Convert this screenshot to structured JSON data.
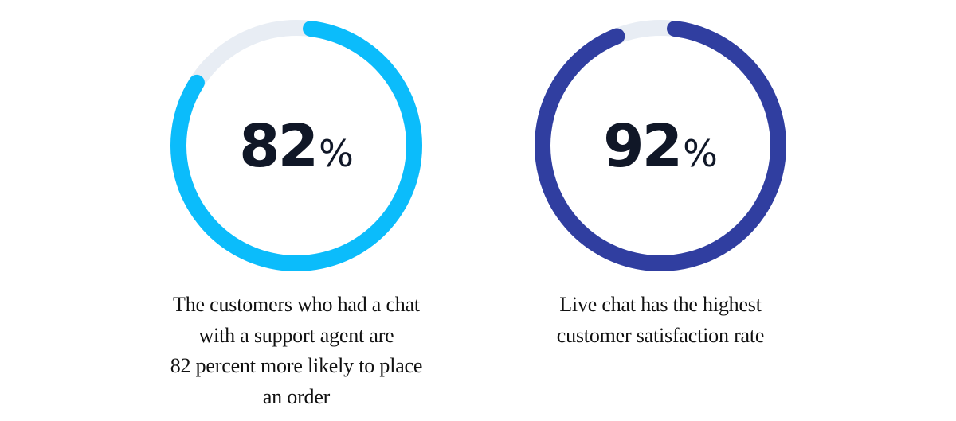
{
  "chart_data": [
    {
      "type": "donut",
      "value": 82,
      "max": 100,
      "value_label": "82",
      "unit": "%",
      "caption_lines": [
        "The customers who had a chat",
        "with a support agent are",
        "82 percent more likely to place",
        "an order"
      ],
      "colors": {
        "fill": "#0bbcfb",
        "track": "#e8edf4"
      }
    },
    {
      "type": "donut",
      "value": 92,
      "max": 100,
      "value_label": "92",
      "unit": "%",
      "caption_lines": [
        "Live chat has the highest",
        "customer satisfaction rate"
      ],
      "colors": {
        "fill": "#303ea0",
        "track": "#e8edf4"
      }
    }
  ]
}
